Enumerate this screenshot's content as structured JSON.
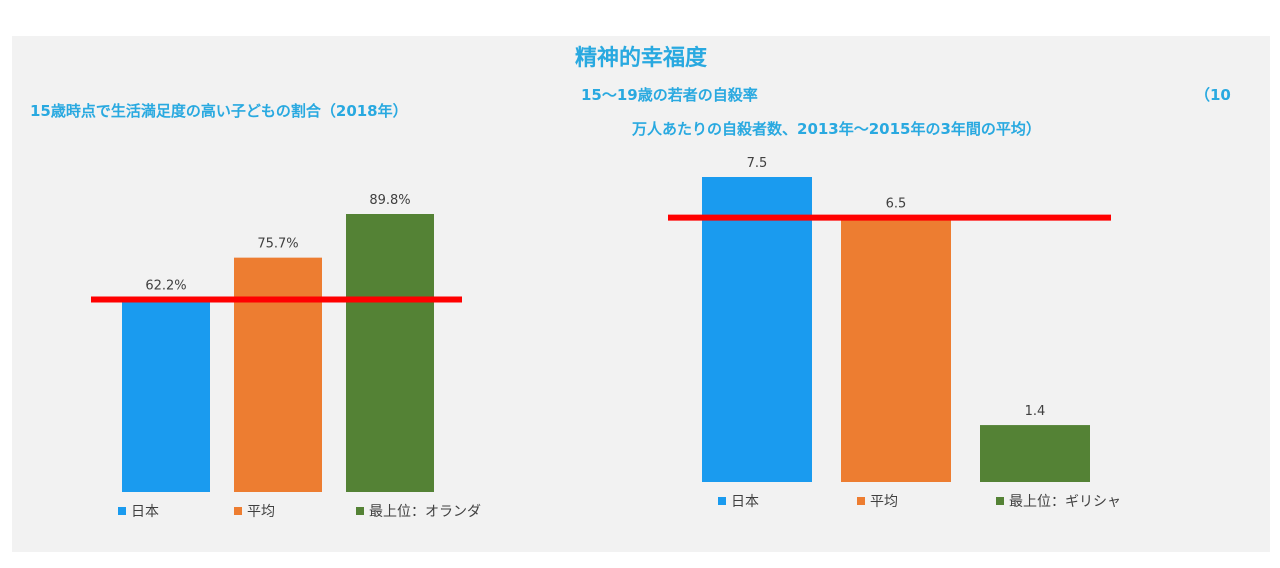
{
  "main_title": "精神的幸福度",
  "left_chart_title": "15歳時点で生活満足度の高い子どもの割合（2018年）",
  "right_chart_title_line1": "15〜19歳の若者の自殺率",
  "right_chart_title_paren": "（10",
  "right_chart_title_line2": "万人あたりの自殺者数、2013年〜2015年の3年間の平均）",
  "chart_data": [
    {
      "type": "bar",
      "title": "15歳時点で生活満足度の高い子どもの割合（2018年）",
      "categories": [
        "日本",
        "平均",
        "最上位：オランダ"
      ],
      "values": [
        62.2,
        75.7,
        89.8
      ],
      "data_labels": [
        "62.2%",
        "75.7%",
        "89.8%"
      ],
      "colors": [
        "#1a9bef",
        "#ed7d31",
        "#548235"
      ],
      "reference_line": {
        "value": 62.2,
        "color": "#ff0000"
      },
      "ylim": [
        0,
        100
      ],
      "legend_position": "bottom",
      "grid": false
    },
    {
      "type": "bar",
      "title": "15〜19歳の若者の自殺率（10万人あたりの自殺者数、2013年〜2015年の3年間の平均）",
      "categories": [
        "日本",
        "平均",
        "最上位：ギリシャ"
      ],
      "values": [
        7.5,
        6.5,
        1.4
      ],
      "data_labels": [
        "7.5",
        "6.5",
        "1.4"
      ],
      "colors": [
        "#1a9bef",
        "#ed7d31",
        "#548235"
      ],
      "reference_line": {
        "value": 6.5,
        "color": "#ff0000"
      },
      "ylim": [
        0,
        7.5
      ],
      "legend_position": "bottom",
      "grid": false
    }
  ]
}
